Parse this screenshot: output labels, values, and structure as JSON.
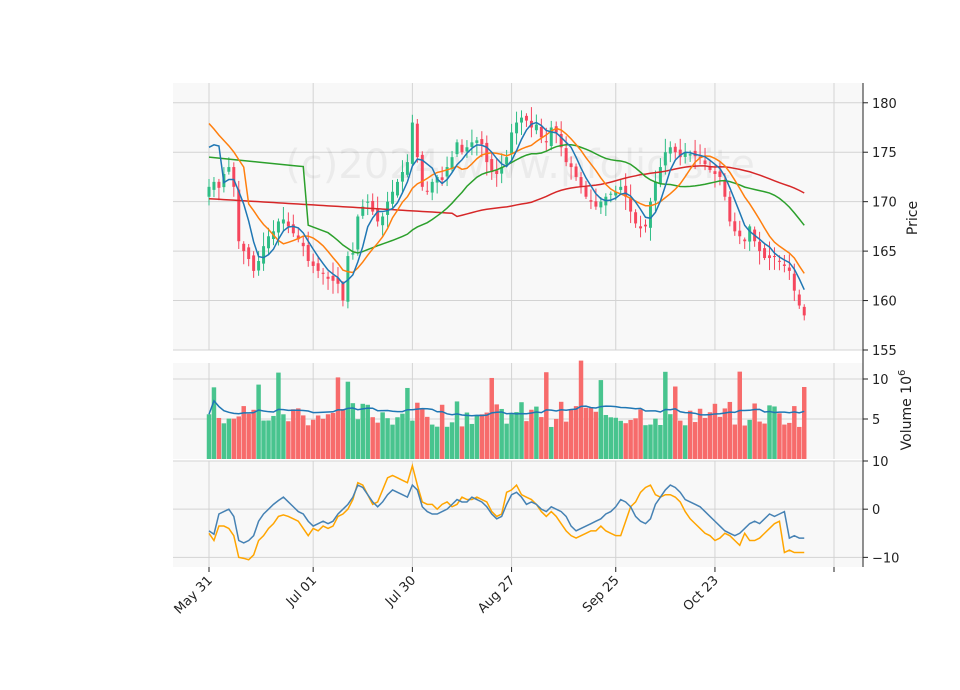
{
  "watermark": "(c)2024 www.pfolio.site",
  "chart_data": {
    "type": "candlestick",
    "panels": {
      "price": {
        "ylabel": "Price",
        "ylim": [
          155,
          182
        ],
        "yticks": [
          155,
          160,
          165,
          170,
          175,
          180
        ]
      },
      "volume": {
        "ylabel": "Volume  10",
        "exponent": "6",
        "ylim": [
          0,
          12
        ],
        "yticks": [
          5,
          10
        ]
      },
      "oscillator": {
        "ylabel": "",
        "ylim": [
          -12,
          10
        ],
        "yticks": [
          -10,
          0,
          10
        ]
      }
    },
    "x_ticks": [
      {
        "label": "May 31",
        "index": 0
      },
      {
        "label": "Jul 01",
        "index": 21
      },
      {
        "label": "Jul 30",
        "index": 41
      },
      {
        "label": "Aug 27",
        "index": 61
      },
      {
        "label": "Sep 25",
        "index": 82
      },
      {
        "label": "Oct 23",
        "index": 102
      },
      {
        "label": "",
        "index": 126
      }
    ],
    "n": 126,
    "close": [
      171.5,
      172.0,
      171.4,
      172.8,
      173.5,
      171.5,
      166.0,
      165.0,
      164.2,
      163.0,
      164.0,
      165.5,
      166.5,
      167.0,
      168.0,
      168.2,
      167.5,
      166.8,
      166.2,
      165.5,
      164.0,
      163.5,
      163.0,
      162.7,
      162.2,
      162.0,
      161.7,
      160.0,
      164.5,
      164.8,
      168.5,
      169.5,
      170.0,
      169.0,
      168.0,
      168.5,
      170.0,
      171.0,
      172.0,
      173.0,
      174.0,
      178.0,
      174.5,
      171.5,
      171.0,
      172.0,
      172.5,
      172.2,
      173.5,
      174.5,
      176.0,
      175.0,
      175.5,
      176.0,
      176.2,
      175.8,
      174.0,
      173.0,
      172.8,
      173.5,
      174.5,
      177.0,
      178.0,
      178.5,
      178.2,
      177.5,
      177.8,
      176.5,
      176.0,
      177.5,
      177.0,
      175.5,
      174.0,
      173.5,
      172.5,
      171.5,
      170.5,
      170.0,
      169.5,
      170.0,
      170.5,
      170.8,
      171.0,
      171.5,
      170.5,
      169.0,
      167.8,
      167.3,
      167.5,
      170.0,
      172.0,
      173.5,
      175.0,
      175.5,
      175.0,
      174.5,
      175.0,
      174.8,
      174.6,
      174.5,
      173.8,
      173.2,
      172.8,
      172.5,
      170.5,
      168.0,
      167.0,
      166.5,
      166.0,
      167.5,
      166.0,
      165.0,
      164.3,
      164.3,
      164.4,
      164.0,
      163.5,
      163.0,
      161.0,
      159.5,
      158.5,
      157.3,
      157.3,
      157.3,
      157.3,
      157.3
    ],
    "rsi_like": [
      -4.5,
      -5.2,
      -1.0,
      -0.5,
      0.0,
      -1.5,
      -6.5,
      -7.0,
      -6.5,
      -5.5,
      -2.5,
      -1.0,
      0.0,
      1.0,
      1.8,
      2.5,
      1.5,
      0.5,
      -0.5,
      -1.0,
      -2.5,
      -3.5,
      -3.0,
      -2.5,
      -3.0,
      -2.5,
      -1.0,
      0.0,
      1.0,
      2.5,
      5.0,
      4.5,
      3.0,
      1.5,
      0.5,
      1.5,
      3.0,
      4.0,
      3.5,
      3.0,
      2.5,
      5.0,
      4.0,
      0.5,
      -0.5,
      -1.0,
      -1.0,
      -0.5,
      0.0,
      1.0,
      2.0,
      1.5,
      1.5,
      2.5,
      2.0,
      1.5,
      0.5,
      -1.0,
      -2.0,
      -1.5,
      1.0,
      3.0,
      3.5,
      2.5,
      1.0,
      1.5,
      1.0,
      0.0,
      -0.5,
      0.5,
      0.0,
      -0.5,
      -1.5,
      -3.5,
      -4.5,
      -4.0,
      -3.5,
      -3.0,
      -2.5,
      -2.0,
      -1.0,
      -0.5,
      0.5,
      2.0,
      1.5,
      0.5,
      -1.5,
      -2.5,
      -3.0,
      -2.0,
      1.0,
      2.5,
      4.0,
      5.0,
      4.5,
      3.5,
      2.0,
      1.5,
      1.0,
      0.5,
      -0.5,
      -1.5,
      -2.5,
      -3.5,
      -4.5,
      -5.0,
      -5.5,
      -5.0,
      -4.0,
      -3.0,
      -2.5,
      -3.0,
      -2.0,
      -1.0,
      -1.5,
      -1.0,
      -0.5,
      -6.0,
      -5.5,
      -6.0,
      -6.0,
      -6.0,
      -6.0,
      -6.0,
      -6.0,
      -6.0
    ],
    "macd_like": [
      -5.0,
      -6.5,
      -3.5,
      -3.5,
      -4.0,
      -5.5,
      -10.0,
      -10.2,
      -10.5,
      -9.5,
      -6.5,
      -5.5,
      -4.0,
      -3.0,
      -1.5,
      -1.2,
      -1.5,
      -2.0,
      -2.5,
      -4.0,
      -5.5,
      -4.0,
      -4.5,
      -3.5,
      -4.0,
      -3.5,
      -1.5,
      -1.0,
      0.0,
      2.0,
      5.5,
      5.0,
      3.0,
      1.0,
      1.5,
      4.0,
      6.5,
      7.0,
      6.5,
      6.0,
      5.5,
      9.0,
      5.0,
      1.5,
      1.0,
      1.0,
      0.0,
      1.0,
      1.5,
      0.5,
      1.0,
      2.5,
      2.0,
      2.0,
      2.5,
      2.0,
      1.5,
      -0.5,
      -1.5,
      -1.0,
      3.5,
      4.0,
      5.0,
      3.0,
      2.5,
      2.0,
      1.0,
      -0.5,
      -1.5,
      -0.5,
      -1.5,
      -3.0,
      -4.5,
      -5.5,
      -6.0,
      -5.5,
      -5.0,
      -4.5,
      -4.5,
      -3.5,
      -4.5,
      -5.0,
      -5.5,
      -5.5,
      -2.5,
      0.5,
      1.5,
      3.5,
      4.5,
      5.0,
      3.0,
      2.5,
      3.0,
      3.0,
      2.5,
      1.5,
      -0.5,
      -2.0,
      -3.0,
      -4.0,
      -5.0,
      -5.5,
      -6.5,
      -6.0,
      -5.0,
      -5.5,
      -6.5,
      -7.5,
      -5.0,
      -6.5,
      -6.5,
      -6.0,
      -5.0,
      -4.0,
      -3.0,
      -2.5,
      -9.0,
      -8.5,
      -9.0,
      -9.0,
      -9.0,
      -9.0,
      -9.0,
      -9.0,
      -9.0
    ],
    "series_colors": {
      "up": "#2ebd85",
      "down": "#f6465d",
      "vol_up": "#48c48e",
      "vol_down": "#f76b6b",
      "ma_short": "#1f77b4",
      "ma_mid": "#ff7f0e",
      "ma_long": "#2ca02c",
      "ma_longest": "#d62728",
      "vol_avg": "#1f77b4",
      "osc_a": "#4682b4",
      "osc_b": "#ffa500"
    }
  }
}
